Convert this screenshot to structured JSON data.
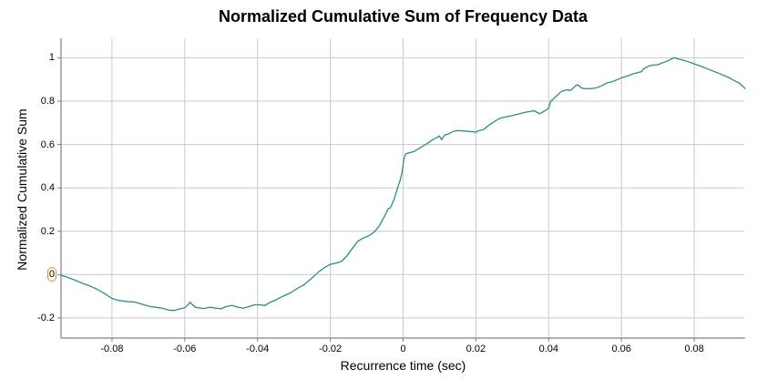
{
  "chart_data": {
    "type": "line",
    "title": "Normalized Cumulative Sum of Frequency Data",
    "xlabel": "Recurrence time (sec)",
    "ylabel": "Normalized Cumulative Sum",
    "xlim": [
      -0.094,
      0.094
    ],
    "ylim": [
      -0.293,
      1.09
    ],
    "grid": true,
    "legend": "none",
    "xticks": {
      "values": [
        -0.08,
        -0.06,
        -0.04,
        -0.02,
        0,
        0.02,
        0.04,
        0.06,
        0.08
      ],
      "labels": [
        "-0.08",
        "-0.06",
        "-0.04",
        "-0.02",
        "0",
        "0.02",
        "0.04",
        "0.06",
        "0.08"
      ]
    },
    "yticks": {
      "values": [
        -0.2,
        0,
        0.2,
        0.4,
        0.6,
        0.8,
        1
      ],
      "labels": [
        "-0.2",
        "0",
        "0.2",
        "0.4",
        "0.6",
        "0.8",
        "1"
      ]
    },
    "colors": {
      "line": "#2a8c8c",
      "grid": "#c9c9c9",
      "spine": "#808080",
      "text": "#000000",
      "zero_label_highlight": "#d9912f"
    },
    "annotations": [
      {
        "type": "highlight-box",
        "target": "y-tick-label-0",
        "color": "#d9912f"
      }
    ],
    "series": [
      {
        "name": "normalized-cumsum",
        "points": [
          [
            -0.094,
            -0.003
          ],
          [
            -0.092,
            -0.014
          ],
          [
            -0.09,
            -0.027
          ],
          [
            -0.088,
            -0.041
          ],
          [
            -0.0865,
            -0.05
          ],
          [
            -0.084,
            -0.068
          ],
          [
            -0.082,
            -0.088
          ],
          [
            -0.08,
            -0.11
          ],
          [
            -0.0785,
            -0.118
          ],
          [
            -0.077,
            -0.122
          ],
          [
            -0.0755,
            -0.125
          ],
          [
            -0.074,
            -0.126
          ],
          [
            -0.072,
            -0.135
          ],
          [
            -0.07,
            -0.146
          ],
          [
            -0.068,
            -0.151
          ],
          [
            -0.066,
            -0.156
          ],
          [
            -0.0645,
            -0.163
          ],
          [
            -0.063,
            -0.166
          ],
          [
            -0.0615,
            -0.159
          ],
          [
            -0.06,
            -0.153
          ],
          [
            -0.0592,
            -0.141
          ],
          [
            -0.0585,
            -0.128
          ],
          [
            -0.0578,
            -0.141
          ],
          [
            -0.057,
            -0.151
          ],
          [
            -0.055,
            -0.157
          ],
          [
            -0.053,
            -0.151
          ],
          [
            -0.0515,
            -0.155
          ],
          [
            -0.05,
            -0.158
          ],
          [
            -0.0487,
            -0.148
          ],
          [
            -0.047,
            -0.142
          ],
          [
            -0.0455,
            -0.15
          ],
          [
            -0.044,
            -0.155
          ],
          [
            -0.0425,
            -0.149
          ],
          [
            -0.041,
            -0.14
          ],
          [
            -0.0395,
            -0.139
          ],
          [
            -0.038,
            -0.143
          ],
          [
            -0.0365,
            -0.128
          ],
          [
            -0.035,
            -0.117
          ],
          [
            -0.033,
            -0.1
          ],
          [
            -0.031,
            -0.085
          ],
          [
            -0.029,
            -0.063
          ],
          [
            -0.0275,
            -0.05
          ],
          [
            -0.026,
            -0.03
          ],
          [
            -0.0245,
            -0.008
          ],
          [
            -0.023,
            0.015
          ],
          [
            -0.0215,
            0.033
          ],
          [
            -0.02,
            0.047
          ],
          [
            -0.0185,
            0.053
          ],
          [
            -0.017,
            0.06
          ],
          [
            -0.0155,
            0.085
          ],
          [
            -0.014,
            0.12
          ],
          [
            -0.0125,
            0.153
          ],
          [
            -0.011,
            0.168
          ],
          [
            -0.0095,
            0.178
          ],
          [
            -0.008,
            0.195
          ],
          [
            -0.0065,
            0.225
          ],
          [
            -0.005,
            0.272
          ],
          [
            -0.004,
            0.305
          ],
          [
            -0.0035,
            0.308
          ],
          [
            -0.0025,
            0.345
          ],
          [
            -0.0015,
            0.4
          ],
          [
            -0.0008,
            0.435
          ],
          [
            -0.0003,
            0.47
          ],
          [
            0.0002,
            0.53
          ],
          [
            0.0007,
            0.557
          ],
          [
            0.002,
            0.563
          ],
          [
            0.003,
            0.568
          ],
          [
            0.0044,
            0.582
          ],
          [
            0.0056,
            0.594
          ],
          [
            0.0069,
            0.608
          ],
          [
            0.0081,
            0.622
          ],
          [
            0.0094,
            0.633
          ],
          [
            0.01,
            0.639
          ],
          [
            0.0106,
            0.622
          ],
          [
            0.0114,
            0.643
          ],
          [
            0.0126,
            0.65
          ],
          [
            0.0139,
            0.661
          ],
          [
            0.0151,
            0.664
          ],
          [
            0.017,
            0.662
          ],
          [
            0.0185,
            0.66
          ],
          [
            0.02,
            0.657
          ],
          [
            0.021,
            0.665
          ],
          [
            0.022,
            0.668
          ],
          [
            0.0235,
            0.688
          ],
          [
            0.025,
            0.705
          ],
          [
            0.0265,
            0.72
          ],
          [
            0.028,
            0.727
          ],
          [
            0.03,
            0.733
          ],
          [
            0.0318,
            0.741
          ],
          [
            0.0335,
            0.748
          ],
          [
            0.036,
            0.756
          ],
          [
            0.0375,
            0.742
          ],
          [
            0.039,
            0.756
          ],
          [
            0.04,
            0.768
          ],
          [
            0.0405,
            0.798
          ],
          [
            0.042,
            0.822
          ],
          [
            0.0435,
            0.845
          ],
          [
            0.045,
            0.852
          ],
          [
            0.046,
            0.849
          ],
          [
            0.0475,
            0.872
          ],
          [
            0.048,
            0.876
          ],
          [
            0.049,
            0.861
          ],
          [
            0.05,
            0.857
          ],
          [
            0.0515,
            0.858
          ],
          [
            0.053,
            0.861
          ],
          [
            0.0545,
            0.87
          ],
          [
            0.056,
            0.884
          ],
          [
            0.0575,
            0.89
          ],
          [
            0.059,
            0.9
          ],
          [
            0.06,
            0.908
          ],
          [
            0.0615,
            0.915
          ],
          [
            0.063,
            0.925
          ],
          [
            0.0645,
            0.932
          ],
          [
            0.0655,
            0.936
          ],
          [
            0.066,
            0.948
          ],
          [
            0.0675,
            0.962
          ],
          [
            0.069,
            0.967
          ],
          [
            0.07,
            0.968
          ],
          [
            0.0715,
            0.978
          ],
          [
            0.073,
            0.988
          ],
          [
            0.074,
            0.997
          ],
          [
            0.0745,
            1.0
          ],
          [
            0.0755,
            0.995
          ],
          [
            0.077,
            0.989
          ],
          [
            0.078,
            0.984
          ],
          [
            0.08,
            0.972
          ],
          [
            0.082,
            0.96
          ],
          [
            0.0835,
            0.95
          ],
          [
            0.085,
            0.94
          ],
          [
            0.087,
            0.927
          ],
          [
            0.0895,
            0.909
          ],
          [
            0.091,
            0.895
          ],
          [
            0.0925,
            0.882
          ],
          [
            0.094,
            0.858
          ]
        ]
      }
    ]
  }
}
